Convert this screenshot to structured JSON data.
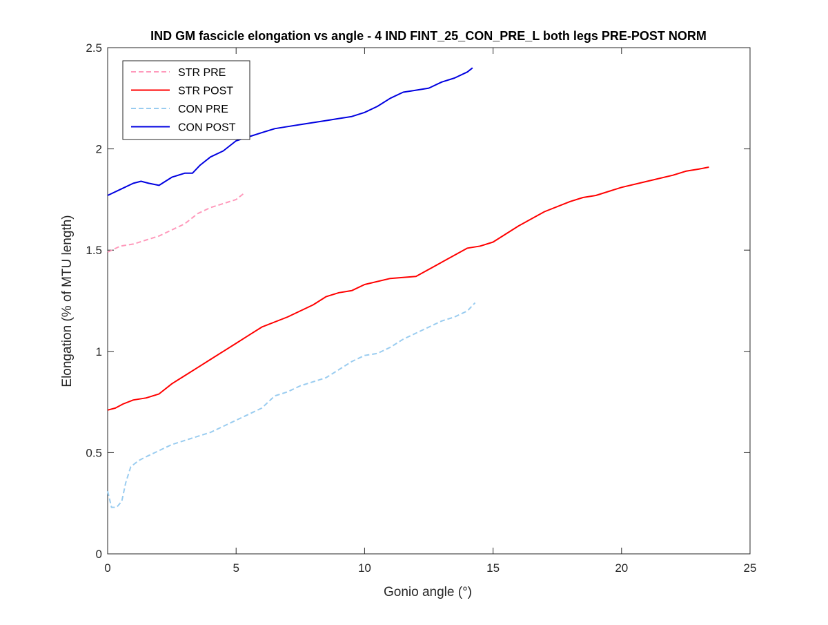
{
  "chart_data": {
    "type": "line",
    "title": "IND GM fascicle elongation vs angle - 4 IND FINT_25_CON_PRE_L both legs PRE-POST NORM",
    "xlabel": "Gonio angle (°)",
    "ylabel": "Elongation (% of MTU length)",
    "xlim": [
      0,
      25
    ],
    "ylim": [
      0,
      2.5
    ],
    "xticks": [
      0,
      5,
      10,
      15,
      20,
      25
    ],
    "yticks": [
      0,
      0.5,
      1,
      1.5,
      2,
      2.5
    ],
    "xtick_labels": [
      "0",
      "5",
      "10",
      "15",
      "20",
      "25"
    ],
    "ytick_labels": [
      "0",
      "0.5",
      "1",
      "1.5",
      "2",
      "2.5"
    ],
    "grid": false,
    "legend_position": "top-left",
    "series": [
      {
        "name": "STR PRE",
        "color": "#ff99bb",
        "style": "dashed",
        "x": [
          0,
          0.5,
          1,
          1.5,
          2,
          2.5,
          3,
          3.5,
          4,
          4.5,
          5,
          5.3
        ],
        "y": [
          1.49,
          1.52,
          1.53,
          1.55,
          1.57,
          1.6,
          1.63,
          1.68,
          1.71,
          1.73,
          1.75,
          1.78
        ]
      },
      {
        "name": "STR POST",
        "color": "#ff0000",
        "style": "solid",
        "x": [
          0,
          0.3,
          0.6,
          1,
          1.5,
          2,
          2.5,
          3,
          3.5,
          4,
          4.5,
          5,
          5.5,
          6,
          7,
          8,
          8.5,
          9,
          9.5,
          10,
          11,
          12,
          13,
          14,
          14.5,
          15,
          16,
          17,
          18,
          18.5,
          19,
          20,
          21,
          22,
          22.5,
          23,
          23.4
        ],
        "y": [
          0.71,
          0.72,
          0.74,
          0.76,
          0.77,
          0.79,
          0.84,
          0.88,
          0.92,
          0.96,
          1.0,
          1.04,
          1.08,
          1.12,
          1.17,
          1.23,
          1.27,
          1.29,
          1.3,
          1.33,
          1.36,
          1.37,
          1.44,
          1.51,
          1.52,
          1.54,
          1.62,
          1.69,
          1.74,
          1.76,
          1.77,
          1.81,
          1.84,
          1.87,
          1.89,
          1.9,
          1.91
        ]
      },
      {
        "name": "CON PRE",
        "color": "#99ccf0",
        "style": "dashed",
        "x": [
          0,
          0.15,
          0.35,
          0.55,
          0.7,
          0.9,
          1.2,
          1.5,
          2,
          2.5,
          3,
          3.5,
          4,
          4.5,
          5,
          5.5,
          6,
          6.5,
          7,
          7.5,
          8,
          8.5,
          9,
          9.5,
          10,
          10.5,
          11,
          11.5,
          12,
          12.5,
          13,
          13.5,
          14,
          14.3
        ],
        "y": [
          0.31,
          0.23,
          0.23,
          0.26,
          0.35,
          0.43,
          0.46,
          0.48,
          0.51,
          0.54,
          0.56,
          0.58,
          0.6,
          0.63,
          0.66,
          0.69,
          0.72,
          0.78,
          0.8,
          0.83,
          0.85,
          0.87,
          0.91,
          0.95,
          0.98,
          0.99,
          1.02,
          1.06,
          1.09,
          1.12,
          1.15,
          1.17,
          1.2,
          1.24
        ]
      },
      {
        "name": "CON POST",
        "color": "#0000e0",
        "style": "solid",
        "x": [
          0,
          0.5,
          1,
          1.3,
          1.6,
          2,
          2.5,
          3,
          3.3,
          3.6,
          4,
          4.5,
          5,
          5.5,
          6,
          6.5,
          7,
          7.5,
          8,
          8.5,
          9,
          9.5,
          10,
          10.5,
          11,
          11.5,
          12,
          12.5,
          13,
          13.5,
          14,
          14.2
        ],
        "y": [
          1.77,
          1.8,
          1.83,
          1.84,
          1.83,
          1.82,
          1.86,
          1.88,
          1.88,
          1.92,
          1.96,
          1.99,
          2.04,
          2.06,
          2.08,
          2.1,
          2.11,
          2.12,
          2.13,
          2.14,
          2.15,
          2.16,
          2.18,
          2.21,
          2.25,
          2.28,
          2.29,
          2.3,
          2.33,
          2.35,
          2.38,
          2.4
        ]
      }
    ]
  }
}
